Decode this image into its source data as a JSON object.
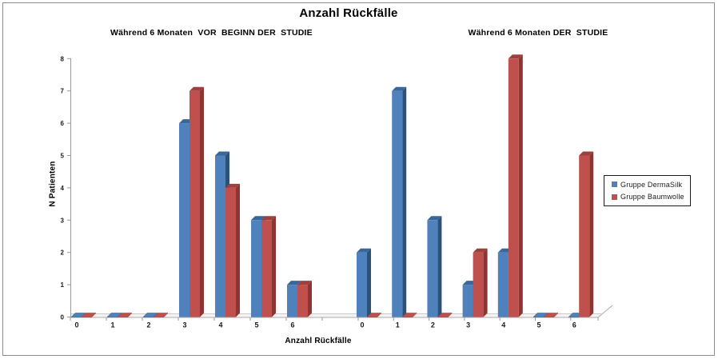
{
  "frame": {
    "border_color": "#8c8c8c",
    "background": "#ffffff"
  },
  "title": "Anzahl Rückfälle",
  "subtitles": {
    "left": "Während 6 Monaten  VOR  BEGINN DER  STUDIE",
    "right": "Während 6 Monaten DER  STUDIE"
  },
  "axes": {
    "y_title": "N Patienten",
    "x_title": "Anzahl Rückfälle",
    "y_ticks": [
      "0",
      "1",
      "2",
      "3",
      "4",
      "5",
      "6",
      "7",
      "8"
    ]
  },
  "legend": {
    "items": [
      {
        "label": "Gruppe DermaSilk",
        "color": "#4f81bd"
      },
      {
        "label": "Gruppe Baumwolle",
        "color": "#c0504d"
      }
    ]
  },
  "chart_data": {
    "type": "bar",
    "style": "3d-clustered-column",
    "title": "Anzahl Rückfälle",
    "xlabel": "Anzahl Rückfälle",
    "ylabel": "N Patienten",
    "ylim": [
      0,
      8
    ],
    "grid": false,
    "legend_position": "right",
    "categories": [
      "0",
      "1",
      "2",
      "3",
      "4",
      "5",
      "6"
    ],
    "panels": [
      {
        "label": "Während 6 Monaten  VOR  BEGINN DER  STUDIE",
        "series": [
          {
            "name": "Gruppe DermaSilk",
            "color": "#4f81bd",
            "values": [
              0,
              0,
              0,
              6,
              5,
              3,
              1
            ]
          },
          {
            "name": "Gruppe Baumwolle",
            "color": "#c0504d",
            "values": [
              0,
              0,
              0,
              7,
              4,
              3,
              1
            ]
          }
        ]
      },
      {
        "label": "Während 6 Monaten DER  STUDIE",
        "series": [
          {
            "name": "Gruppe DermaSilk",
            "color": "#4f81bd",
            "values": [
              2,
              7,
              3,
              1,
              2,
              0,
              0
            ]
          },
          {
            "name": "Gruppe Baumwolle",
            "color": "#c0504d",
            "values": [
              0,
              0,
              0,
              2,
              8,
              0,
              5
            ]
          }
        ]
      }
    ],
    "colors": {
      "dermasilk": {
        "front": "#4f81bd",
        "side": "#2e5275",
        "top": "#3a679a"
      },
      "baumwolle": {
        "front": "#c0504d",
        "side": "#8a3633",
        "top": "#9e403e"
      },
      "axis_line": "#9a9a9a",
      "floor_fill": "#f4f4f4",
      "floor_line": "#a8a8a8"
    }
  }
}
